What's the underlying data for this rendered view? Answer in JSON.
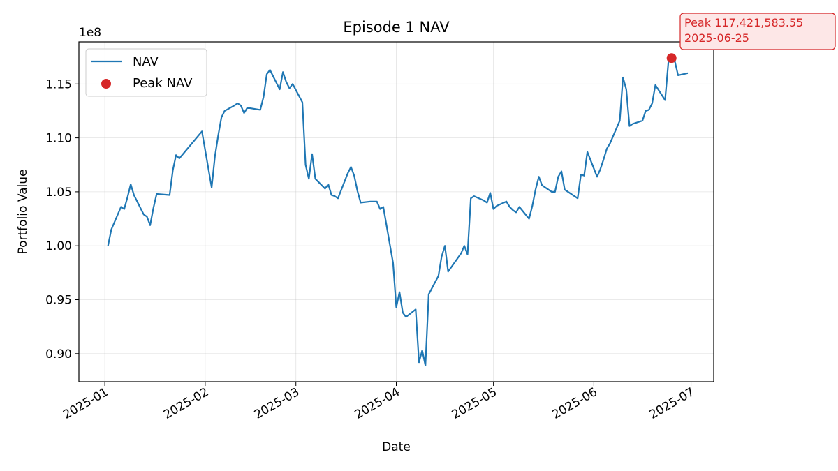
{
  "chart_data": {
    "type": "line",
    "title": "Episode 1 NAV",
    "xlabel": "Date",
    "ylabel": "Portfolio Value",
    "y_offset_text": "1e8",
    "y_scale": 100000000,
    "grid": true,
    "legend_position": "top-left",
    "xlim": [
      "2024-12-24",
      "2025-07-08"
    ],
    "ylim": [
      0.874,
      1.189
    ],
    "x_ticks": [
      "2025-01",
      "2025-02",
      "2025-03",
      "2025-04",
      "2025-05",
      "2025-06",
      "2025-07"
    ],
    "x_tick_dates": [
      "2025-01-01",
      "2025-02-01",
      "2025-03-01",
      "2025-04-01",
      "2025-05-01",
      "2025-06-01",
      "2025-07-01"
    ],
    "y_ticks": [
      "0.90",
      "0.95",
      "1.00",
      "1.05",
      "1.10",
      "1.15"
    ],
    "y_tick_values": [
      0.9,
      0.95,
      1.0,
      1.05,
      1.1,
      1.15
    ],
    "colors": {
      "nav": "#1f77b4",
      "peak": "#d62728",
      "annot_bg": "#fde7e7"
    },
    "series": [
      {
        "name": "NAV",
        "x": [
          "2025-01-02",
          "2025-01-03",
          "2025-01-06",
          "2025-01-07",
          "2025-01-08",
          "2025-01-09",
          "2025-01-10",
          "2025-01-13",
          "2025-01-14",
          "2025-01-15",
          "2025-01-16",
          "2025-01-17",
          "2025-01-21",
          "2025-01-22",
          "2025-01-23",
          "2025-01-24",
          "2025-01-31",
          "2025-02-03",
          "2025-02-04",
          "2025-02-05",
          "2025-02-06",
          "2025-02-07",
          "2025-02-10",
          "2025-02-11",
          "2025-02-12",
          "2025-02-13",
          "2025-02-14",
          "2025-02-18",
          "2025-02-19",
          "2025-02-20",
          "2025-02-21",
          "2025-02-24",
          "2025-02-25",
          "2025-02-26",
          "2025-02-27",
          "2025-02-28",
          "2025-03-03",
          "2025-03-04",
          "2025-03-05",
          "2025-03-06",
          "2025-03-07",
          "2025-03-10",
          "2025-03-11",
          "2025-03-12",
          "2025-03-13",
          "2025-03-14",
          "2025-03-17",
          "2025-03-18",
          "2025-03-19",
          "2025-03-20",
          "2025-03-21",
          "2025-03-24",
          "2025-03-25",
          "2025-03-26",
          "2025-03-27",
          "2025-03-28",
          "2025-03-31",
          "2025-04-01",
          "2025-04-02",
          "2025-04-03",
          "2025-04-04",
          "2025-04-07",
          "2025-04-08",
          "2025-04-09",
          "2025-04-10",
          "2025-04-11",
          "2025-04-14",
          "2025-04-15",
          "2025-04-16",
          "2025-04-17",
          "2025-04-21",
          "2025-04-22",
          "2025-04-23",
          "2025-04-24",
          "2025-04-25",
          "2025-04-28",
          "2025-04-29",
          "2025-04-30",
          "2025-05-01",
          "2025-05-02",
          "2025-05-05",
          "2025-05-06",
          "2025-05-07",
          "2025-05-08",
          "2025-05-09",
          "2025-05-12",
          "2025-05-13",
          "2025-05-14",
          "2025-05-15",
          "2025-05-16",
          "2025-05-19",
          "2025-05-20",
          "2025-05-21",
          "2025-05-22",
          "2025-05-23",
          "2025-05-27",
          "2025-05-28",
          "2025-05-29",
          "2025-05-30",
          "2025-06-02",
          "2025-06-03",
          "2025-06-04",
          "2025-06-05",
          "2025-06-06",
          "2025-06-09",
          "2025-06-10",
          "2025-06-11",
          "2025-06-12",
          "2025-06-13",
          "2025-06-16",
          "2025-06-17",
          "2025-06-18",
          "2025-06-19",
          "2025-06-20",
          "2025-06-23",
          "2025-06-24",
          "2025-06-25",
          "2025-06-26",
          "2025-06-27",
          "2025-06-30"
        ],
        "values": [
          1.0,
          1.015,
          1.036,
          1.034,
          1.045,
          1.057,
          1.047,
          1.029,
          1.027,
          1.019,
          1.035,
          1.048,
          1.047,
          1.07,
          1.084,
          1.081,
          1.106,
          1.054,
          1.083,
          1.102,
          1.119,
          1.125,
          1.13,
          1.132,
          1.13,
          1.123,
          1.128,
          1.126,
          1.138,
          1.159,
          1.163,
          1.145,
          1.161,
          1.152,
          1.146,
          1.15,
          1.133,
          1.075,
          1.062,
          1.085,
          1.062,
          1.053,
          1.057,
          1.047,
          1.046,
          1.044,
          1.067,
          1.073,
          1.065,
          1.051,
          1.04,
          1.041,
          1.041,
          1.041,
          1.034,
          1.036,
          0.984,
          0.943,
          0.957,
          0.938,
          0.934,
          0.941,
          0.892,
          0.903,
          0.889,
          0.955,
          0.972,
          0.99,
          1.0,
          0.976,
          0.993,
          1.0,
          0.992,
          1.044,
          1.046,
          1.042,
          1.04,
          1.049,
          1.034,
          1.037,
          1.041,
          1.036,
          1.033,
          1.031,
          1.036,
          1.025,
          1.037,
          1.052,
          1.064,
          1.056,
          1.05,
          1.05,
          1.064,
          1.069,
          1.052,
          1.044,
          1.066,
          1.065,
          1.087,
          1.064,
          1.071,
          1.08,
          1.09,
          1.095,
          1.116,
          1.156,
          1.145,
          1.111,
          1.113,
          1.116,
          1.125,
          1.126,
          1.132,
          1.149,
          1.135,
          1.17,
          1.174,
          1.171,
          1.158,
          1.16
        ]
      }
    ],
    "peak": {
      "name": "Peak NAV",
      "x": "2025-06-25",
      "value": 1.174,
      "label_line1": "Peak 117,421,583.55",
      "label_line2": "2025-06-25"
    }
  }
}
